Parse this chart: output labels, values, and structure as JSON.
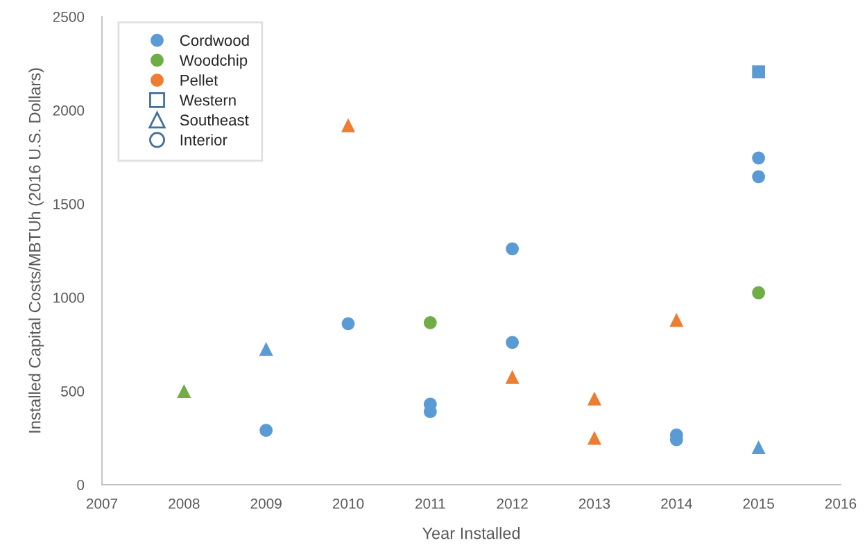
{
  "chart_data": {
    "type": "scatter",
    "xlabel": "Year Installed",
    "ylabel": "Installed Capital Costs/MBTUh (2016 U.S. Dollars)",
    "xlim": [
      2007,
      2016
    ],
    "xticks": [
      2007,
      2008,
      2009,
      2010,
      2011,
      2012,
      2013,
      2014,
      2015,
      2016
    ],
    "ylim": [
      0,
      2500
    ],
    "yticks": [
      0,
      500,
      1000,
      1500,
      2000,
      2500
    ],
    "grid": false,
    "legend": "top left",
    "series": [
      {
        "name": "Cordwood",
        "color": "#5b9bd5",
        "marker": "circle"
      },
      {
        "name": "Woodchip",
        "color": "#70ad47",
        "marker": "circle"
      },
      {
        "name": "Pellet",
        "color": "#ed7d31",
        "marker": "circle"
      },
      {
        "name": "Western",
        "color": "#41719c",
        "marker": "square"
      },
      {
        "name": "Southeast",
        "color": "#41719c",
        "marker": "triangle"
      },
      {
        "name": "Interior",
        "color": "#41719c",
        "marker": "circle"
      },
      {
        "color": "#5b9bd5",
        "marker": "square",
        "x": [
          2015
        ],
        "values": [
          2205
        ]
      },
      {
        "color": "#5b9bd5",
        "marker": "triangle",
        "x": [
          2009,
          2015
        ],
        "values": [
          725,
          200
        ]
      },
      {
        "color": "#70ad47",
        "marker": "triangle",
        "x": [
          2008
        ],
        "values": [
          500
        ]
      },
      {
        "color": "#ed7d31",
        "marker": "triangle",
        "x": [
          2010,
          2012,
          2013,
          2013,
          2014
        ],
        "values": [
          1920,
          575,
          460,
          250,
          880
        ]
      },
      {
        "color": "#5b9bd5",
        "marker": "circle",
        "x": [
          2009,
          2010,
          2011,
          2011,
          2012,
          2012,
          2014,
          2014,
          2015,
          2015
        ],
        "values": [
          290,
          860,
          430,
          390,
          1260,
          760,
          265,
          240,
          1745,
          1645
        ]
      },
      {
        "color": "#70ad47",
        "marker": "circle",
        "x": [
          2011,
          2015
        ],
        "values": [
          865,
          1025
        ]
      }
    ]
  }
}
